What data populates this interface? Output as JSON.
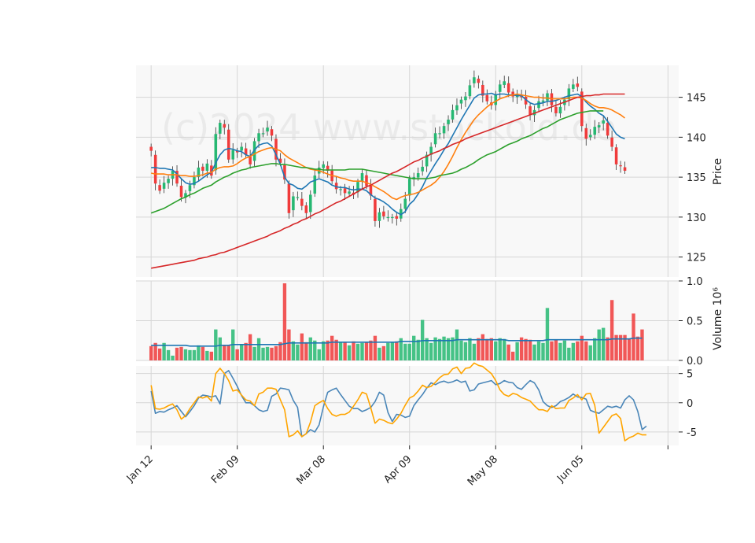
{
  "watermark": "(c)2024 www.stockoid.de",
  "colors": {
    "panel_bg": "#f8f8f8",
    "grid": "#d6d6d6",
    "up": "#26b872",
    "down": "#f03b3b",
    "ma_fast": "#1f77b4",
    "ma_mid": "#ff7f0e",
    "ma_slow": "#2ca02c",
    "ma_long": "#d62728",
    "vol_ma": "#1f77b4",
    "osc_a": "#4a86b8",
    "osc_b": "#ffa500"
  },
  "chart_data": [
    {
      "type": "candlestick",
      "ylabel": "Price",
      "ylim": [
        122.5,
        149
      ],
      "yticks": [
        125,
        130,
        135,
        140,
        145
      ],
      "xlim": [
        -3.5,
        122.5
      ],
      "xtick_labels": [
        "Jan 12",
        "Feb 09",
        "Mar 08",
        "Apr 09",
        "May 08",
        "Jun 05"
      ],
      "xtick_positions": [
        0,
        20,
        40,
        60,
        80,
        100
      ],
      "grid": true,
      "closes": [
        138.3,
        134.2,
        133.3,
        134.3,
        134.8,
        135.8,
        134.2,
        132.5,
        133.0,
        134.0,
        135.0,
        136.2,
        135.8,
        136.7,
        135.2,
        140.4,
        141.8,
        141.2,
        137.2,
        138.4,
        138.1,
        138.8,
        137.8,
        136.6,
        139.5,
        140.5,
        140.5,
        141.2,
        140.2,
        137.2,
        136.8,
        134.7,
        130.5,
        132.6,
        132.5,
        131.4,
        130.5,
        132.8,
        135.2,
        136.2,
        136.6,
        135.8,
        134.5,
        133.5,
        133.5,
        133.0,
        133.2,
        132.8,
        134.4,
        135.5,
        133.9,
        132.7,
        129.5,
        130.6,
        130.1,
        130.0,
        130.0,
        129.8,
        131.0,
        132.3,
        134.8,
        135.0,
        135.5,
        136.3,
        137.8,
        138.8,
        140.5,
        140.5,
        141.4,
        142.2,
        143.4,
        144.0,
        144.7,
        145.1,
        146.5,
        147.5,
        146.8,
        145.2,
        144.5,
        144.0,
        145.4,
        146.6,
        147.0,
        145.6,
        145.1,
        145.4,
        145.0,
        144.1,
        142.8,
        143.4,
        144.5,
        144.6,
        145.5,
        144.0,
        143.0,
        143.8,
        144.7,
        146.1,
        146.6,
        146.3,
        141.4,
        139.8,
        140.3,
        141.3,
        141.5,
        142.1,
        140.2,
        138.8,
        136.6,
        136.4,
        135.8
      ],
      "series": [
        {
          "name": "",
          "color": "#1f77b4",
          "values": [
            136.2,
            136.2,
            136.1,
            136.1,
            136.0,
            135.9,
            135.4,
            134.8,
            134.3,
            134.1,
            134.2,
            134.5,
            134.9,
            135.3,
            135.6,
            136.8,
            137.8,
            138.4,
            138.6,
            138.5,
            138.3,
            138.2,
            137.8,
            137.6,
            138.4,
            139.0,
            139.2,
            139.3,
            138.9,
            137.8,
            136.6,
            135.0,
            134.2,
            134.0,
            133.6,
            133.5,
            133.9,
            134.4,
            134.6,
            134.8,
            134.6,
            134.4,
            134.0,
            133.8,
            133.7,
            133.7,
            133.5,
            133.4,
            133.5,
            133.5,
            133.3,
            132.8,
            132.4,
            132.2,
            131.9,
            131.5,
            131.0,
            130.6,
            130.3,
            130.7,
            131.6,
            132.1,
            132.9,
            133.8,
            134.9,
            135.8,
            136.7,
            137.5,
            138.4,
            139.2,
            140.2,
            141.2,
            142.2,
            143.1,
            144.0,
            144.9,
            145.3,
            145.4,
            145.4,
            145.5,
            145.3,
            145.4,
            145.4,
            145.3,
            145.3,
            145.2,
            145.2,
            144.7,
            144.3,
            144.1,
            144.2,
            144.3,
            144.5,
            144.5,
            144.6,
            144.8,
            145.0,
            145.2,
            145.3,
            145.4,
            145.1,
            144.4,
            143.9,
            143.5,
            143.0,
            142.7,
            142.0,
            141.2,
            140.4,
            140.0,
            139.8
          ]
        },
        {
          "name": "",
          "color": "#ff7f0e",
          "values": [
            135.5,
            135.4,
            135.4,
            135.4,
            135.3,
            135.3,
            135.3,
            135.2,
            135.2,
            135.1,
            135.1,
            135.2,
            135.3,
            135.5,
            135.6,
            136.0,
            136.2,
            136.3,
            136.3,
            136.4,
            136.7,
            137.1,
            137.4,
            137.6,
            137.9,
            138.2,
            138.4,
            138.6,
            138.7,
            138.5,
            138.3,
            137.8,
            137.4,
            137.1,
            136.8,
            136.5,
            136.2,
            136.0,
            135.9,
            135.8,
            135.6,
            135.4,
            135.2,
            135.1,
            134.9,
            134.8,
            134.6,
            134.5,
            134.5,
            134.5,
            134.3,
            134.1,
            133.8,
            133.5,
            133.2,
            132.8,
            132.4,
            132.2,
            132.5,
            132.7,
            132.8,
            132.9,
            133.1,
            133.4,
            133.7,
            134.0,
            134.4,
            135.0,
            135.7,
            136.6,
            137.6,
            138.7,
            139.7,
            140.6,
            141.4,
            142.2,
            142.8,
            143.3,
            143.8,
            144.2,
            144.5,
            144.8,
            145.0,
            145.2,
            145.3,
            145.4,
            145.3,
            145.2,
            145.1,
            145.0,
            145.0,
            144.9,
            144.9,
            144.8,
            144.8,
            144.8,
            144.8,
            144.9,
            145.0,
            145.0,
            144.9,
            144.6,
            144.2,
            143.9,
            143.7,
            143.7,
            143.6,
            143.4,
            143.1,
            142.8,
            142.4
          ]
        },
        {
          "name": "",
          "color": "#2ca02c",
          "values": [
            130.5,
            130.7,
            130.9,
            131.1,
            131.4,
            131.7,
            132.0,
            132.3,
            132.5,
            132.8,
            133.0,
            133.3,
            133.6,
            133.8,
            134.0,
            134.4,
            134.7,
            135.0,
            135.2,
            135.5,
            135.7,
            135.9,
            136.0,
            136.2,
            136.3,
            136.4,
            136.5,
            136.6,
            136.7,
            136.7,
            136.6,
            136.6,
            136.5,
            136.4,
            136.3,
            136.2,
            136.2,
            136.1,
            136.0,
            136.0,
            135.9,
            135.9,
            135.9,
            135.9,
            135.9,
            135.9,
            136.0,
            136.0,
            136.0,
            136.0,
            135.9,
            135.8,
            135.7,
            135.6,
            135.5,
            135.4,
            135.3,
            135.2,
            135.1,
            135.0,
            134.9,
            134.8,
            134.8,
            134.8,
            134.8,
            134.9,
            135.0,
            135.2,
            135.3,
            135.4,
            135.5,
            135.7,
            136.0,
            136.2,
            136.5,
            136.8,
            137.2,
            137.5,
            137.8,
            138.0,
            138.2,
            138.5,
            138.8,
            139.1,
            139.3,
            139.5,
            139.8,
            140.0,
            140.2,
            140.5,
            140.8,
            141.1,
            141.3,
            141.6,
            141.9,
            142.2,
            142.4,
            142.6,
            142.8,
            143.0,
            143.1,
            143.2,
            143.3,
            143.3,
            143.3,
            143.3
          ]
        },
        {
          "name": "",
          "color": "#d62728",
          "values": [
            123.6,
            123.7,
            123.8,
            123.9,
            124.0,
            124.1,
            124.2,
            124.3,
            124.4,
            124.5,
            124.6,
            124.8,
            124.9,
            125.0,
            125.2,
            125.3,
            125.5,
            125.6,
            125.8,
            126.0,
            126.2,
            126.4,
            126.6,
            126.8,
            127.0,
            127.2,
            127.4,
            127.6,
            127.9,
            128.1,
            128.3,
            128.6,
            128.8,
            129.1,
            129.3,
            129.6,
            129.8,
            130.1,
            130.4,
            130.6,
            130.9,
            131.2,
            131.5,
            131.8,
            132.0,
            132.3,
            132.6,
            132.9,
            133.2,
            133.5,
            133.8,
            134.0,
            134.3,
            134.6,
            134.9,
            135.2,
            135.5,
            135.7,
            136.0,
            136.3,
            136.6,
            136.9,
            137.1,
            137.4,
            137.6,
            137.9,
            138.1,
            138.3,
            138.6,
            138.8,
            139.1,
            139.3,
            139.5,
            139.8,
            140.0,
            140.2,
            140.4,
            140.6,
            140.8,
            141.0,
            141.2,
            141.4,
            141.6,
            141.8,
            142.0,
            142.2,
            142.4,
            142.6,
            142.8,
            143.0,
            143.2,
            143.4,
            143.6,
            143.8,
            144.0,
            144.2,
            144.4,
            144.6,
            144.8,
            145.0,
            145.1,
            145.2,
            145.2,
            145.3,
            145.3,
            145.4,
            145.4,
            145.4,
            145.4,
            145.4,
            145.4
          ]
        }
      ]
    },
    {
      "type": "bar",
      "ylabel": "Volume",
      "ylabel_exponent": "10⁶",
      "ylim": [
        0,
        1.0
      ],
      "yticks": [
        0.0,
        0.5,
        1.0
      ],
      "ytick_labels": [
        "0.0",
        "0.5",
        "1.0"
      ],
      "values": [
        0.18,
        0.22,
        0.15,
        0.22,
        0.13,
        0.06,
        0.16,
        0.17,
        0.14,
        0.13,
        0.13,
        0.19,
        0.17,
        0.12,
        0.11,
        0.39,
        0.29,
        0.19,
        0.19,
        0.39,
        0.14,
        0.2,
        0.22,
        0.33,
        0.17,
        0.28,
        0.16,
        0.17,
        0.16,
        0.18,
        0.23,
        0.97,
        0.39,
        0.24,
        0.2,
        0.34,
        0.23,
        0.29,
        0.25,
        0.14,
        0.24,
        0.25,
        0.31,
        0.26,
        0.23,
        0.23,
        0.19,
        0.24,
        0.21,
        0.22,
        0.23,
        0.25,
        0.31,
        0.16,
        0.18,
        0.22,
        0.23,
        0.24,
        0.28,
        0.21,
        0.21,
        0.31,
        0.26,
        0.51,
        0.28,
        0.22,
        0.29,
        0.27,
        0.3,
        0.28,
        0.29,
        0.39,
        0.25,
        0.23,
        0.28,
        0.21,
        0.28,
        0.33,
        0.27,
        0.28,
        0.24,
        0.28,
        0.27,
        0.2,
        0.11,
        0.23,
        0.29,
        0.27,
        0.26,
        0.2,
        0.24,
        0.22,
        0.66,
        0.24,
        0.26,
        0.22,
        0.25,
        0.16,
        0.22,
        0.24,
        0.31,
        0.24,
        0.19,
        0.28,
        0.39,
        0.41,
        0.29,
        0.76,
        0.32,
        0.32,
        0.32,
        0.27,
        0.59,
        0.3,
        0.39
      ],
      "series": [
        {
          "name": "",
          "color": "#1f77b4",
          "values": [
            0.19,
            0.19,
            0.19,
            0.19,
            0.19,
            0.19,
            0.19,
            0.19,
            0.19,
            0.18,
            0.18,
            0.18,
            0.18,
            0.18,
            0.18,
            0.18,
            0.19,
            0.19,
            0.19,
            0.2,
            0.2,
            0.2,
            0.2,
            0.2,
            0.2,
            0.2,
            0.2,
            0.2,
            0.2,
            0.2,
            0.2,
            0.21,
            0.22,
            0.22,
            0.22,
            0.22,
            0.22,
            0.22,
            0.22,
            0.22,
            0.22,
            0.22,
            0.23,
            0.23,
            0.23,
            0.23,
            0.23,
            0.23,
            0.23,
            0.23,
            0.23,
            0.23,
            0.23,
            0.23,
            0.23,
            0.23,
            0.23,
            0.23,
            0.24,
            0.24,
            0.24,
            0.24,
            0.24,
            0.25,
            0.25,
            0.25,
            0.25,
            0.25,
            0.25,
            0.25,
            0.25,
            0.26,
            0.26,
            0.26,
            0.26,
            0.26,
            0.26,
            0.26,
            0.26,
            0.26,
            0.26,
            0.26,
            0.26,
            0.25,
            0.25,
            0.25,
            0.25,
            0.25,
            0.25,
            0.25,
            0.25,
            0.25,
            0.26,
            0.26,
            0.26,
            0.26,
            0.26,
            0.26,
            0.26,
            0.26,
            0.26,
            0.26,
            0.26,
            0.26,
            0.26,
            0.26,
            0.26,
            0.27,
            0.27,
            0.27,
            0.27,
            0.27,
            0.28,
            0.28,
            0.28
          ]
        }
      ]
    },
    {
      "type": "line",
      "ylim": [
        -7.3,
        6.3
      ],
      "yticks": [
        -5,
        0,
        5
      ],
      "grid": true,
      "series": [
        {
          "name": "",
          "color": "#4a86b8",
          "values": [
            2.0,
            -1.8,
            -1.5,
            -1.6,
            -1.2,
            -0.9,
            -0.5,
            -1.5,
            -2.4,
            -1.5,
            -0.5,
            0.8,
            1.3,
            1.2,
            1.0,
            1.2,
            -0.2,
            5.0,
            5.5,
            4.2,
            2.8,
            1.2,
            0.0,
            0.0,
            -0.5,
            -1.2,
            -1.5,
            -1.3,
            1.1,
            1.5,
            2.5,
            2.4,
            2.2,
            0.4,
            -0.8,
            -5.8,
            -5.3,
            -4.6,
            -5.0,
            -3.8,
            -0.7,
            1.8,
            2.2,
            2.5,
            1.4,
            0.4,
            -0.6,
            -1.0,
            -1.0,
            -1.5,
            -1.2,
            -0.8,
            0.2,
            1.8,
            1.3,
            -1.7,
            -3.2,
            -2.0,
            -2.1,
            -2.5,
            -2.3,
            -0.5,
            0.5,
            1.4,
            2.5,
            3.4,
            3.1,
            3.5,
            3.7,
            3.4,
            3.6,
            3.9,
            3.5,
            3.7,
            2.0,
            2.2,
            3.2,
            3.4,
            3.6,
            3.8,
            3.1,
            3.3,
            3.8,
            3.5,
            3.4,
            2.6,
            2.3,
            3.1,
            3.8,
            3.4,
            2.2,
            0.2,
            -0.5,
            -0.8,
            -0.5,
            0.2,
            0.5,
            0.9,
            1.5,
            1.0,
            0.9,
            0.6,
            -1.3,
            -1.6,
            -1.8,
            -1.2,
            -0.6,
            -0.8,
            -0.6,
            -0.9,
            0.5,
            1.2,
            0.5,
            -1.5,
            -4.6,
            -4.0
          ]
        },
        {
          "name": "",
          "color": "#ffa500",
          "values": [
            3.0,
            -1.0,
            -1.1,
            -0.9,
            -0.5,
            -0.2,
            -1.2,
            -2.8,
            -2.2,
            -1.0,
            0.0,
            1.0,
            0.8,
            1.1,
            0.3,
            5.0,
            5.9,
            5.0,
            3.8,
            2.0,
            2.2,
            1.3,
            0.5,
            0.3,
            -0.5,
            1.5,
            1.8,
            2.5,
            2.5,
            2.3,
            0.5,
            -1.2,
            -5.8,
            -5.5,
            -4.8,
            -5.8,
            -5.3,
            -3.3,
            -0.5,
            0.0,
            0.4,
            -1.0,
            -2.0,
            -2.3,
            -2.0,
            -2.0,
            -1.6,
            -0.6,
            0.5,
            1.8,
            1.5,
            -0.9,
            -3.5,
            -2.8,
            -3.0,
            -3.4,
            -3.6,
            -2.8,
            -1.8,
            -0.4,
            0.8,
            1.2,
            2.0,
            3.0,
            2.6,
            2.8,
            3.5,
            4.3,
            4.8,
            4.9,
            5.8,
            6.1,
            5.0,
            5.9,
            6.0,
            6.8,
            6.4,
            6.2,
            5.6,
            5.0,
            3.8,
            2.2,
            1.4,
            1.1,
            1.6,
            1.4,
            0.9,
            0.6,
            0.3,
            -0.5,
            -1.2,
            -1.2,
            -1.5,
            -0.5,
            -1.0,
            -0.9,
            -0.9,
            0.4,
            0.8,
            1.4,
            0.5,
            1.5,
            1.6,
            -0.4,
            -5.2,
            -4.2,
            -3.2,
            -2.2,
            -1.9,
            -2.7,
            -6.5,
            -6.0,
            -5.7,
            -5.2,
            -5.5,
            -5.5
          ]
        }
      ]
    }
  ]
}
